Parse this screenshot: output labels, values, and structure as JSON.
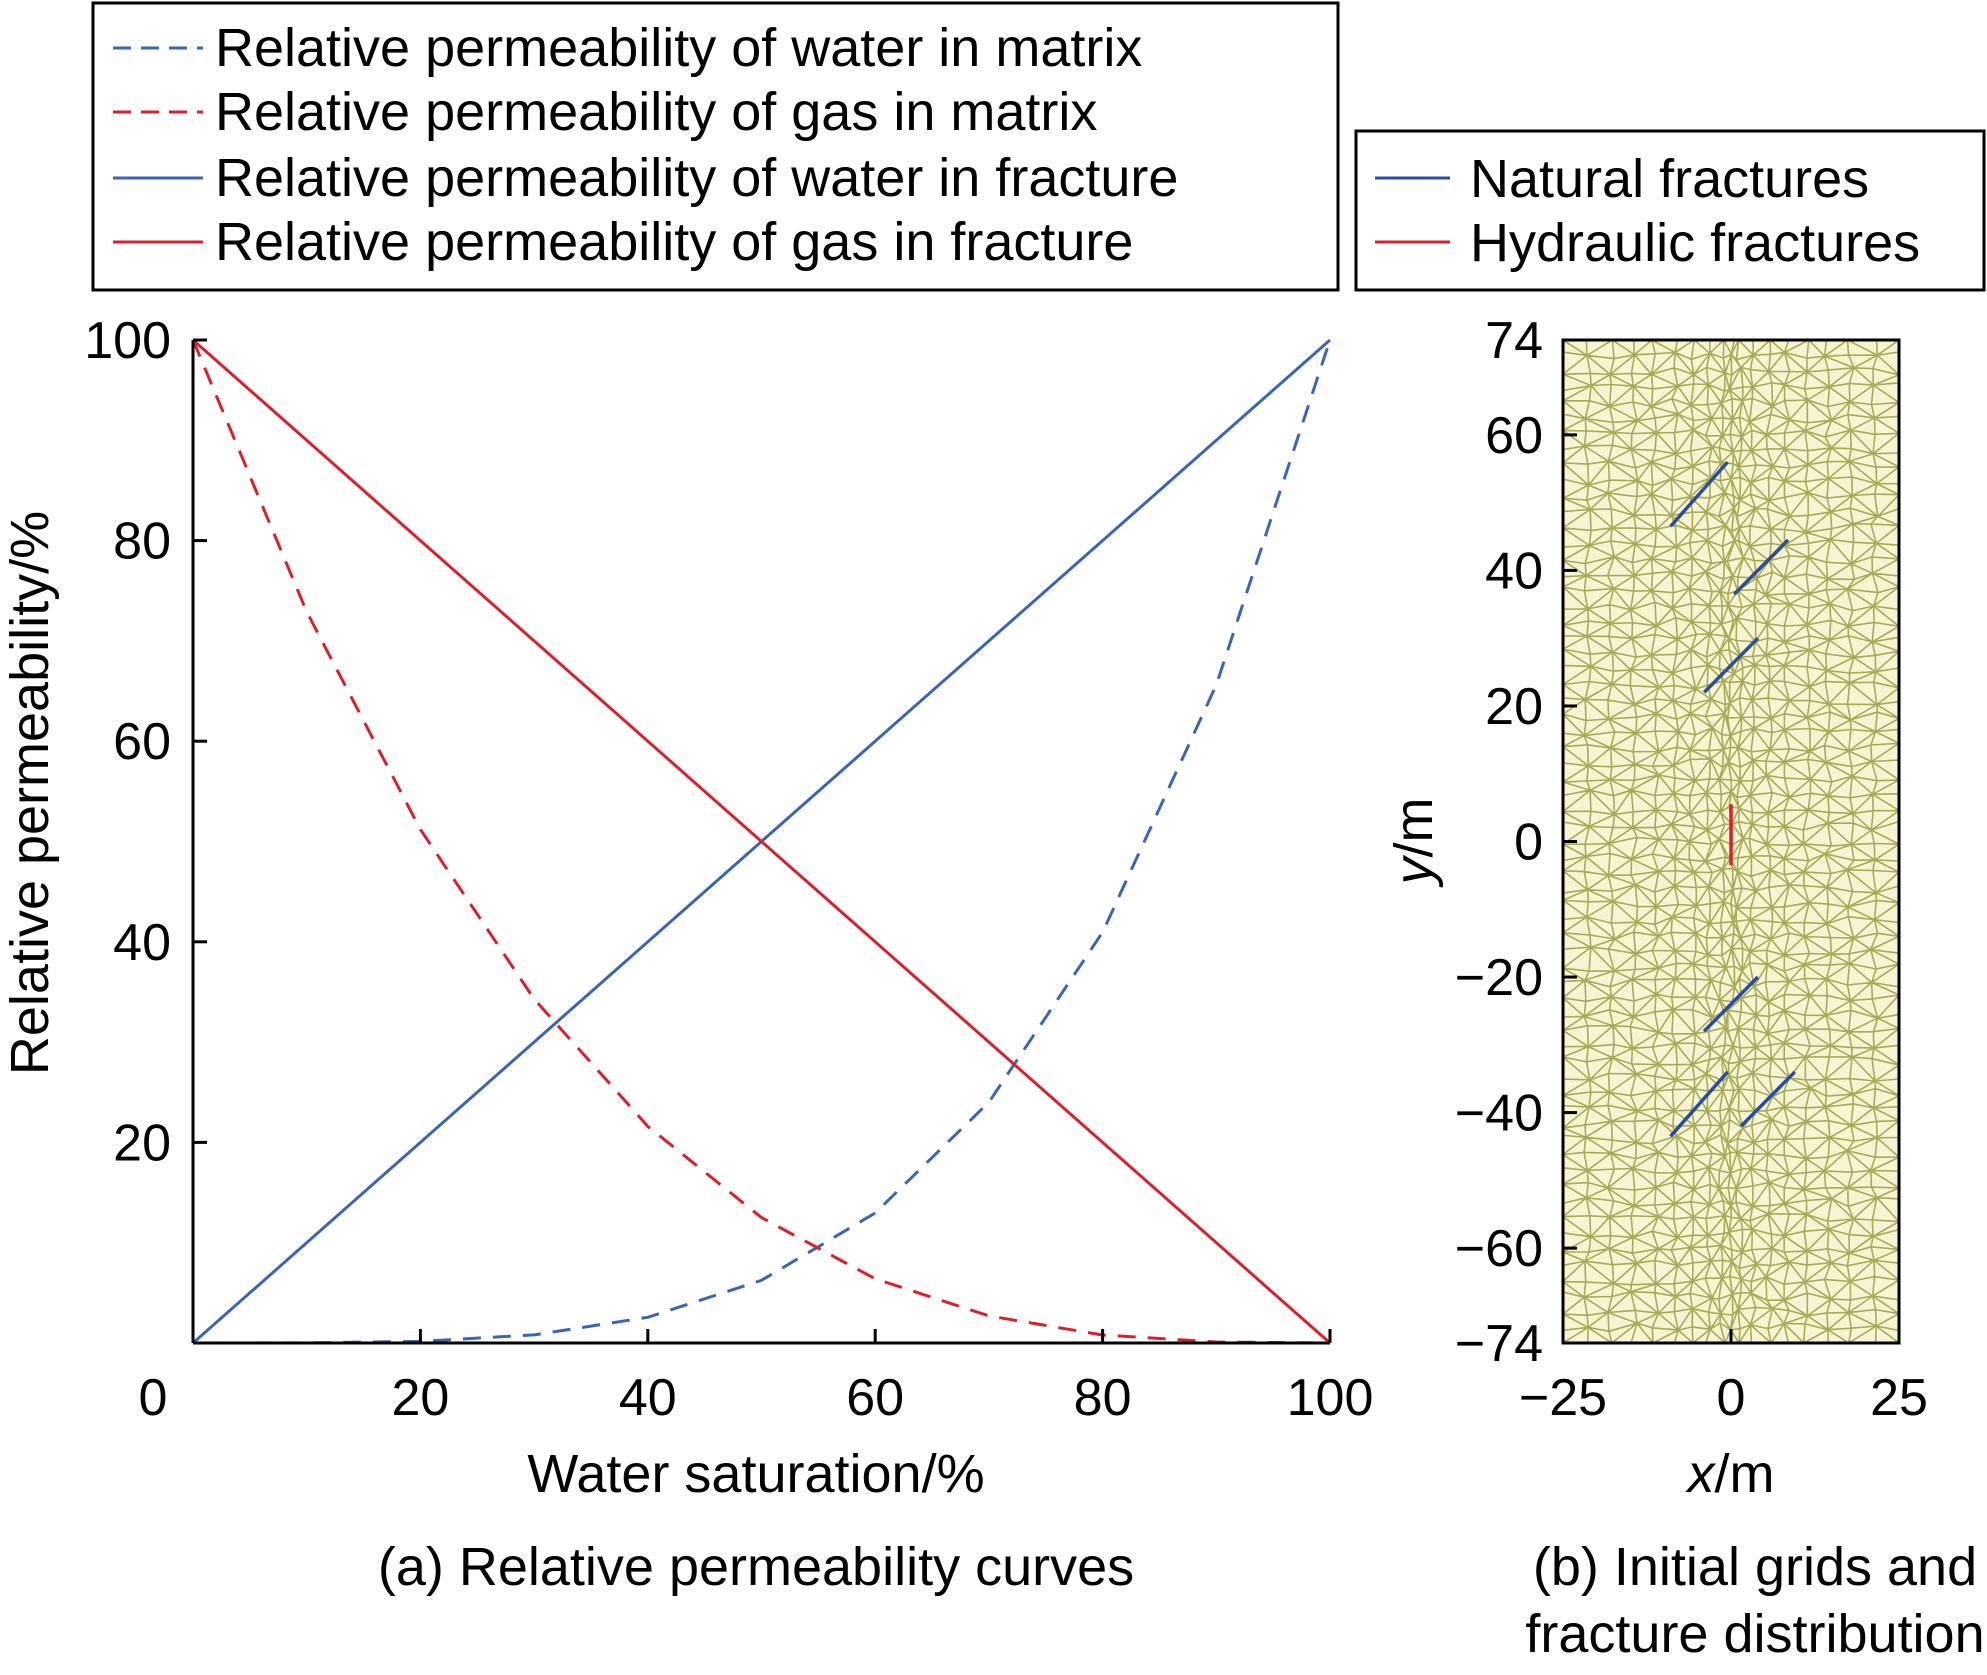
{
  "chart_data": [
    {
      "type": "line",
      "caption": "(a) Relative permeability curves",
      "xlabel": "Water saturation/%",
      "ylabel": "Relative permeability/%",
      "xlim": [
        0,
        100
      ],
      "ylim": [
        0,
        100
      ],
      "xticks": [
        0,
        20,
        40,
        60,
        80,
        100
      ],
      "yticks": [
        20,
        40,
        60,
        80,
        100
      ],
      "grid": false,
      "legend_position": "above plot",
      "series": [
        {
          "name": "Relative permeability of water in matrix",
          "style": "dashed",
          "color": "#3a66b0",
          "x": [
            0,
            10,
            20,
            30,
            40,
            50,
            60,
            70,
            80,
            90,
            100
          ],
          "y": [
            0,
            0.01,
            0.16,
            0.81,
            2.56,
            6.25,
            12.96,
            24.01,
            40.96,
            65.61,
            100
          ]
        },
        {
          "name": "Relative permeability of gas in matrix",
          "style": "dashed",
          "color": "#d9202c",
          "x": [
            0,
            10,
            20,
            30,
            40,
            50,
            60,
            70,
            80,
            90,
            100
          ],
          "y": [
            100,
            72.9,
            51.2,
            34.3,
            21.6,
            12.5,
            6.4,
            2.7,
            0.8,
            0.1,
            0
          ]
        },
        {
          "name": "Relative permeability of water in fracture",
          "style": "solid",
          "color": "#3a66b0",
          "x": [
            0,
            100
          ],
          "y": [
            0,
            100
          ]
        },
        {
          "name": "Relative permeability of gas in fracture",
          "style": "solid",
          "color": "#d9202c",
          "x": [
            0,
            100
          ],
          "y": [
            100,
            0
          ]
        }
      ]
    },
    {
      "type": "diagram",
      "caption_line1": "(b) Initial grids and",
      "caption_line2": "fracture distribution",
      "xlabel_var": "x",
      "xlabel_unit": "/m",
      "ylabel_var": "y",
      "ylabel_unit": "/m",
      "xlim": [
        -25,
        25
      ],
      "ylim": [
        -74,
        74
      ],
      "xticks": [
        -25,
        0,
        25
      ],
      "xtick_labels": [
        "−25",
        "0",
        "25"
      ],
      "yticks": [
        74,
        60,
        40,
        20,
        0,
        -20,
        -40,
        -60,
        -74
      ],
      "ytick_labels": [
        "74",
        "60",
        "40",
        "20",
        "0",
        "−20",
        "−40",
        "−60",
        "−74"
      ],
      "mesh_color": "#a8ab56",
      "mesh_background": "#f6f4d3",
      "legend": [
        {
          "name": "Natural fractures",
          "color": "#2a4e9e"
        },
        {
          "name": "Hydraulic fractures",
          "color": "#d9202c"
        }
      ],
      "natural_fractures": [
        [
          [
            -9,
            46.5
          ],
          [
            -0.5,
            56
          ]
        ],
        [
          [
            0.5,
            36.5
          ],
          [
            8.5,
            44.5
          ]
        ],
        [
          [
            -4,
            22
          ],
          [
            4,
            30
          ]
        ],
        [
          [
            -4,
            -28
          ],
          [
            4,
            -20
          ]
        ],
        [
          [
            -9,
            -43.5
          ],
          [
            -0.5,
            -34
          ]
        ],
        [
          [
            1.5,
            -42
          ],
          [
            9.5,
            -34
          ]
        ]
      ],
      "hydraulic_fractures": [
        [
          [
            0,
            -3.5
          ],
          [
            0,
            5.5
          ]
        ]
      ]
    }
  ]
}
